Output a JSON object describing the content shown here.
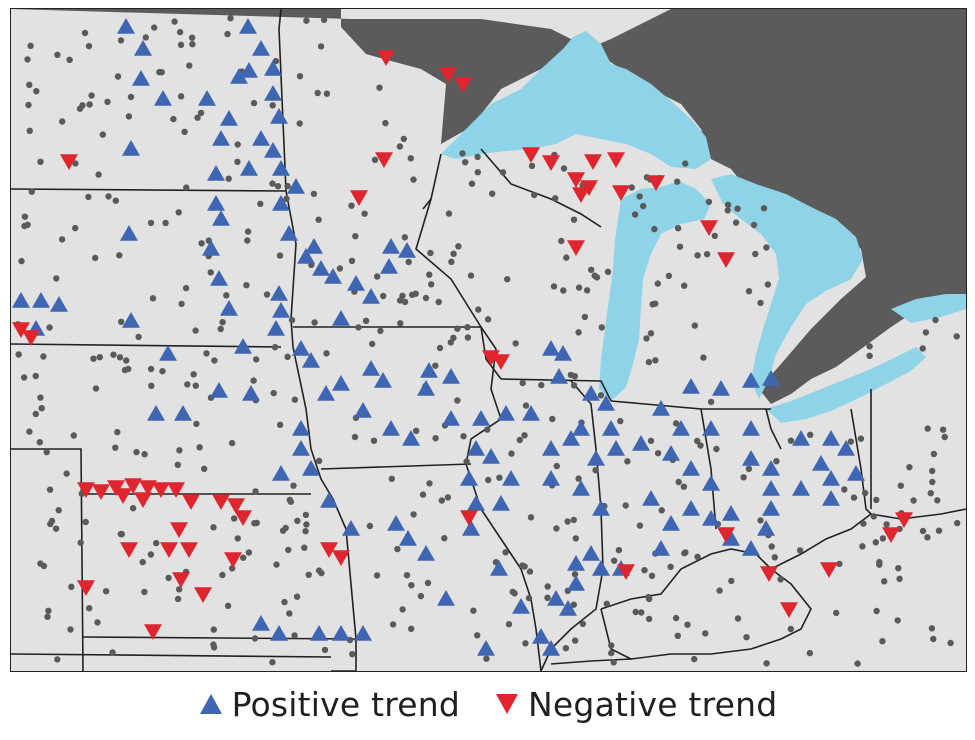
{
  "colors": {
    "land": "#e2e2e2",
    "canada": "#5b5b5b",
    "water": "#8fd3e8",
    "border": "#222222",
    "station": "#5a5a5a",
    "positive": "#3f66b3",
    "negative": "#e0252e"
  },
  "legend": {
    "positive_label": "Positive trend",
    "negative_label": "Negative trend",
    "positive_icon": "triangle-up-icon",
    "negative_icon": "triangle-down-icon"
  }
}
